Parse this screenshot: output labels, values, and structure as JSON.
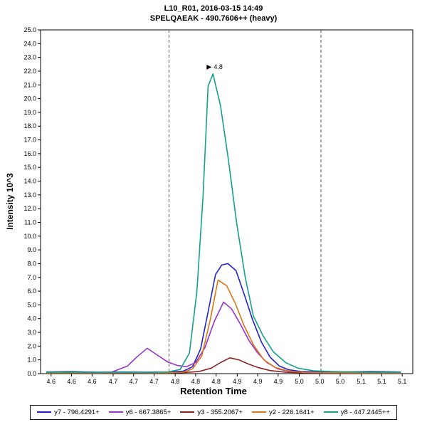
{
  "chart_data": {
    "type": "line",
    "title": "L10_R01, 2016-03-15 14:49",
    "subtitle": "SPELQAEAK - 490.7606++ (heavy)",
    "xlabel": "Retention Time",
    "ylabel": "Intensity 10^3",
    "xlim": [
      4.55,
      5.15
    ],
    "ylim": [
      0.0,
      25.0
    ],
    "grid": false,
    "legend_position": "bottom",
    "yticks": {
      "start": 0,
      "end": 25,
      "step": 1,
      "decimals": 1
    },
    "xticks": [
      {
        "v": 4.567,
        "label": "4.6"
      },
      {
        "v": 4.6,
        "label": "4.6"
      },
      {
        "v": 4.633,
        "label": "4.6"
      },
      {
        "v": 4.667,
        "label": "4.7"
      },
      {
        "v": 4.7,
        "label": "4.7"
      },
      {
        "v": 4.733,
        "label": "4.7"
      },
      {
        "v": 4.767,
        "label": "4.8"
      },
      {
        "v": 4.8,
        "label": "4.8"
      },
      {
        "v": 4.833,
        "label": "4.8"
      },
      {
        "v": 4.867,
        "label": "4.9"
      },
      {
        "v": 4.9,
        "label": "4.9"
      },
      {
        "v": 4.933,
        "label": "4.9"
      },
      {
        "v": 4.967,
        "label": "5.0"
      },
      {
        "v": 5.0,
        "label": "5.0"
      },
      {
        "v": 5.033,
        "label": "5.0"
      },
      {
        "v": 5.067,
        "label": "5.1"
      },
      {
        "v": 5.1,
        "label": "5.1"
      },
      {
        "v": 5.133,
        "label": "5.1"
      }
    ],
    "boundaries": {
      "color": "#555555",
      "values": [
        4.757,
        5.002
      ]
    },
    "peak_annotation": {
      "text": "4.8",
      "x": 4.828,
      "y": 21.8
    },
    "series": [
      {
        "id": "y7",
        "name": "y7 - 796.4291+",
        "color": "#2222CC",
        "x": [
          4.56,
          4.6,
          4.64,
          4.68,
          4.72,
          4.755,
          4.78,
          4.795,
          4.808,
          4.82,
          4.832,
          4.842,
          4.852,
          4.865,
          4.878,
          4.892,
          4.906,
          4.92,
          4.935,
          4.95,
          4.97,
          5.0,
          5.04,
          5.08,
          5.13
        ],
        "y": [
          0.12,
          0.15,
          0.1,
          0.12,
          0.1,
          0.12,
          0.18,
          0.5,
          1.8,
          4.5,
          7.2,
          7.9,
          8.0,
          7.5,
          5.8,
          3.9,
          2.3,
          1.2,
          0.55,
          0.28,
          0.15,
          0.12,
          0.12,
          0.15,
          0.12
        ]
      },
      {
        "id": "y6",
        "name": "y6 - 667.3865+",
        "color": "#9933CC",
        "x": [
          4.56,
          4.6,
          4.635,
          4.665,
          4.69,
          4.705,
          4.722,
          4.738,
          4.755,
          4.77,
          4.785,
          4.8,
          4.815,
          4.83,
          4.845,
          4.858,
          4.872,
          4.886,
          4.9,
          4.915,
          4.932,
          4.952,
          4.975,
          5.0,
          5.05,
          5.1,
          5.13
        ],
        "y": [
          0.06,
          0.08,
          0.06,
          0.12,
          0.55,
          1.2,
          1.85,
          1.35,
          0.85,
          0.6,
          0.5,
          0.8,
          1.9,
          3.8,
          5.2,
          4.7,
          3.6,
          2.4,
          1.5,
          0.8,
          0.35,
          0.15,
          0.1,
          0.08,
          0.06,
          0.06,
          0.06
        ]
      },
      {
        "id": "y3",
        "name": "y3 - 355.2067+",
        "color": "#8B2323",
        "x": [
          4.56,
          4.6,
          4.65,
          4.7,
          4.75,
          4.78,
          4.805,
          4.825,
          4.84,
          4.855,
          4.87,
          4.885,
          4.9,
          4.92,
          4.945,
          4.975,
          5.01,
          5.06,
          5.13
        ],
        "y": [
          0.05,
          0.06,
          0.05,
          0.06,
          0.05,
          0.07,
          0.15,
          0.4,
          0.8,
          1.15,
          1.0,
          0.7,
          0.45,
          0.22,
          0.1,
          0.06,
          0.05,
          0.05,
          0.05
        ]
      },
      {
        "id": "y2",
        "name": "y2 - 226.1641+",
        "color": "#DC7515",
        "x": [
          4.56,
          4.6,
          4.64,
          4.68,
          4.72,
          4.755,
          4.78,
          4.795,
          4.81,
          4.824,
          4.836,
          4.85,
          4.864,
          4.878,
          4.893,
          4.91,
          4.928,
          4.95,
          4.975,
          5.01,
          5.05,
          5.1,
          5.13
        ],
        "y": [
          0.05,
          0.06,
          0.05,
          0.06,
          0.05,
          0.06,
          0.1,
          0.35,
          1.3,
          4.0,
          6.8,
          6.4,
          5.1,
          3.5,
          2.1,
          1.0,
          0.45,
          0.18,
          0.08,
          0.06,
          0.05,
          0.05,
          0.05
        ]
      },
      {
        "id": "y8",
        "name": "y8 - 447.2445++",
        "color": "#16A08C",
        "x": [
          4.56,
          4.6,
          4.64,
          4.68,
          4.72,
          4.755,
          4.775,
          4.79,
          4.802,
          4.812,
          4.82,
          4.828,
          4.84,
          4.853,
          4.866,
          4.88,
          4.893,
          4.908,
          4.925,
          4.945,
          4.965,
          4.99,
          5.02,
          5.06,
          5.1,
          5.13
        ],
        "y": [
          0.1,
          0.12,
          0.08,
          0.1,
          0.08,
          0.12,
          0.3,
          1.5,
          6.0,
          13.0,
          20.9,
          21.8,
          19.5,
          15.5,
          11.0,
          7.0,
          4.2,
          2.8,
          1.6,
          0.8,
          0.4,
          0.2,
          0.15,
          0.12,
          0.1,
          0.1
        ]
      }
    ]
  }
}
